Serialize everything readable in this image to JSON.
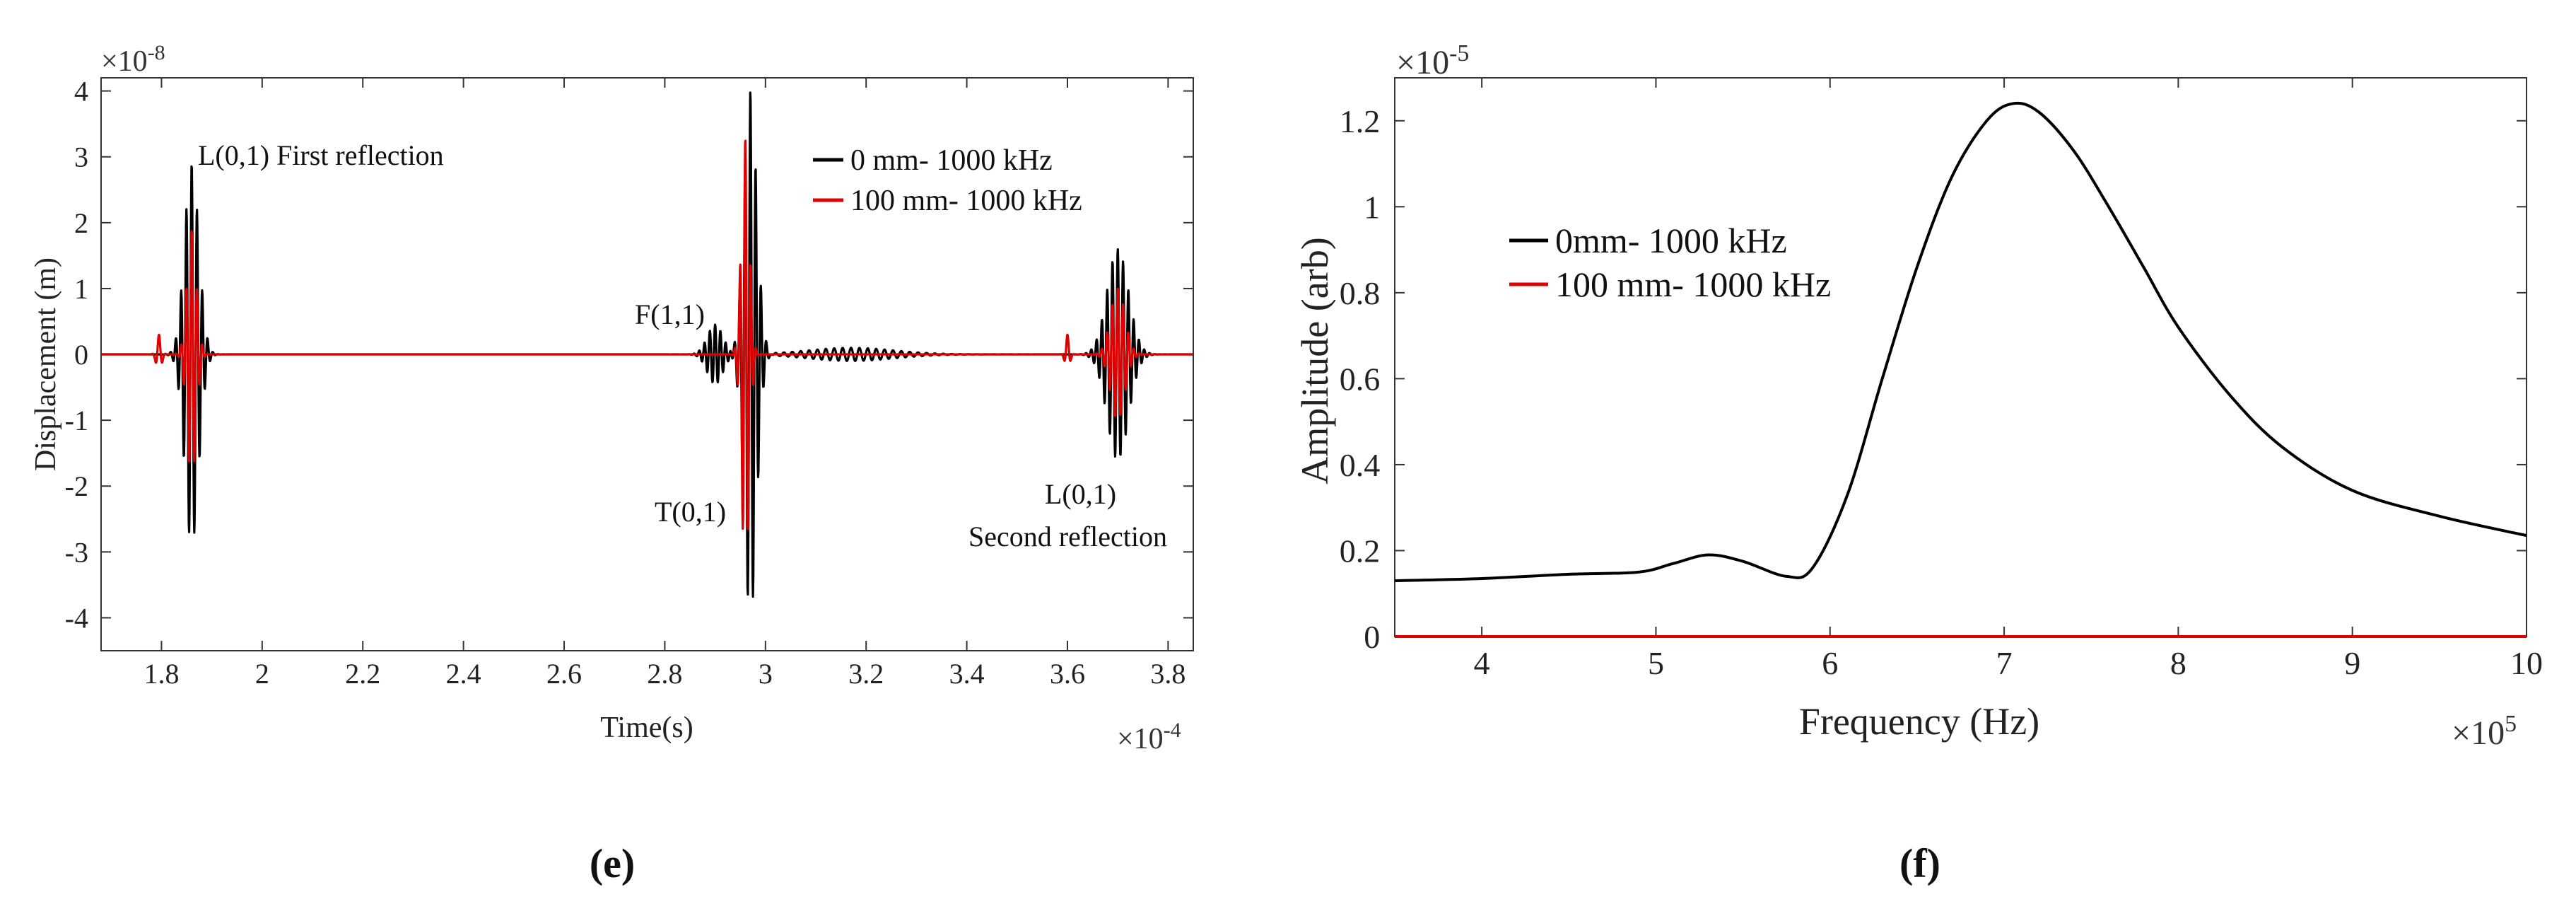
{
  "chart_data": [
    {
      "type": "line",
      "panel_label": "(e)",
      "xlabel": "Time(s)",
      "ylabel": "Displacement (m)",
      "x_exponent_label": "×10",
      "x_exponent": "-4",
      "y_exponent_label": "×10",
      "y_exponent": "-8",
      "xlim": [
        1.68,
        3.85
      ],
      "ylim": [
        -4.5,
        4.2
      ],
      "xticks": [
        1.8,
        2,
        2.2,
        2.4,
        2.6,
        2.8,
        3,
        3.2,
        3.4,
        3.6,
        3.8
      ],
      "xtick_labels": [
        "1.8",
        "2",
        "2.2",
        "2.4",
        "2.6",
        "2.8",
        "3",
        "3.2",
        "3.4",
        "3.6",
        "3.8"
      ],
      "yticks": [
        4,
        3,
        2,
        1,
        0,
        -1,
        -2,
        -3,
        -4
      ],
      "ytick_labels": [
        "4",
        "3",
        "2",
        "1",
        "0",
        "-1",
        "-2",
        "-3",
        "-4"
      ],
      "legend_position": "top-right",
      "series": [
        {
          "name": "0 mm- 1000 kHz",
          "color": "#000000",
          "packets": [
            {
              "center": 1.86,
              "width": 0.02,
              "amplitude": 2.9,
              "cycles_per_unit": 95
            },
            {
              "center": 2.9,
              "width": 0.022,
              "amplitude": 0.45,
              "cycles_per_unit": 95
            },
            {
              "center": 2.97,
              "width": 0.018,
              "amplitude": 4.0,
              "cycles_per_unit": 95
            },
            {
              "center": 3.17,
              "width": 0.12,
              "amplitude": 0.1,
              "cycles_per_unit": 60
            },
            {
              "center": 3.7,
              "width": 0.03,
              "amplitude": 1.6,
              "cycles_per_unit": 95
            }
          ]
        },
        {
          "name": "100 mm- 1000 kHz",
          "color": "#e00000",
          "packets": [
            {
              "center": 1.795,
              "width": 0.007,
              "amplitude": 0.3,
              "cycles_per_unit": 70
            },
            {
              "center": 1.86,
              "width": 0.013,
              "amplitude": 1.9,
              "cycles_per_unit": 95
            },
            {
              "center": 2.96,
              "width": 0.011,
              "amplitude": 3.3,
              "cycles_per_unit": 95
            },
            {
              "center": 3.6,
              "width": 0.006,
              "amplitude": 0.3,
              "cycles_per_unit": 70
            },
            {
              "center": 3.7,
              "width": 0.02,
              "amplitude": 1.0,
              "cycles_per_unit": 95
            }
          ]
        }
      ],
      "annotations": [
        {
          "id": "l01-first",
          "text": "L(0,1) First reflection",
          "x": 1.86,
          "y": 3.0
        },
        {
          "id": "f11",
          "text": "F(1,1)",
          "x": 2.82,
          "y": 0.5
        },
        {
          "id": "t01",
          "text": "T(0,1)",
          "x": 2.86,
          "y": -2.4
        },
        {
          "id": "l01-second-a",
          "text": "L(0,1)",
          "x": 3.66,
          "y": -2.2
        },
        {
          "id": "l01-second-b",
          "text": "Second reflection",
          "x": 3.66,
          "y": -2.8
        }
      ]
    },
    {
      "type": "line",
      "panel_label": "(f)",
      "xlabel": "Frequency (Hz)",
      "ylabel": "Amplitude (arb)",
      "x_exponent_label": "×10",
      "x_exponent": "5",
      "y_exponent_label": "×10",
      "y_exponent": "-5",
      "xlim": [
        3.5,
        10
      ],
      "ylim": [
        0,
        1.3
      ],
      "xticks": [
        4,
        5,
        6,
        7,
        8,
        9,
        10
      ],
      "xtick_labels": [
        "4",
        "5",
        "6",
        "7",
        "8",
        "9",
        "10"
      ],
      "yticks": [
        0,
        0.2,
        0.4,
        0.6,
        0.8,
        1,
        1.2
      ],
      "ytick_labels": [
        "0",
        "0.2",
        "0.4",
        "0.6",
        "0.8",
        "1",
        "1.2"
      ],
      "legend_position": "upper-left",
      "series": [
        {
          "name": "0mm- 1000 kHz",
          "color": "#000000",
          "x": [
            3.5,
            4.0,
            4.5,
            4.9,
            5.1,
            5.3,
            5.5,
            5.75,
            5.9,
            6.1,
            6.3,
            6.5,
            6.7,
            6.9,
            7.05,
            7.2,
            7.4,
            7.6,
            7.8,
            8.0,
            8.3,
            8.6,
            9.0,
            9.5,
            10.0
          ],
          "y": [
            0.13,
            0.135,
            0.145,
            0.15,
            0.17,
            0.19,
            0.175,
            0.14,
            0.16,
            0.33,
            0.6,
            0.86,
            1.07,
            1.2,
            1.24,
            1.22,
            1.13,
            1.0,
            0.86,
            0.72,
            0.56,
            0.44,
            0.34,
            0.28,
            0.235
          ]
        },
        {
          "name": "100 mm- 1000 kHz",
          "color": "#e00000",
          "x": [
            3.5,
            10.0
          ],
          "y": [
            0.0,
            0.0
          ]
        }
      ]
    }
  ]
}
